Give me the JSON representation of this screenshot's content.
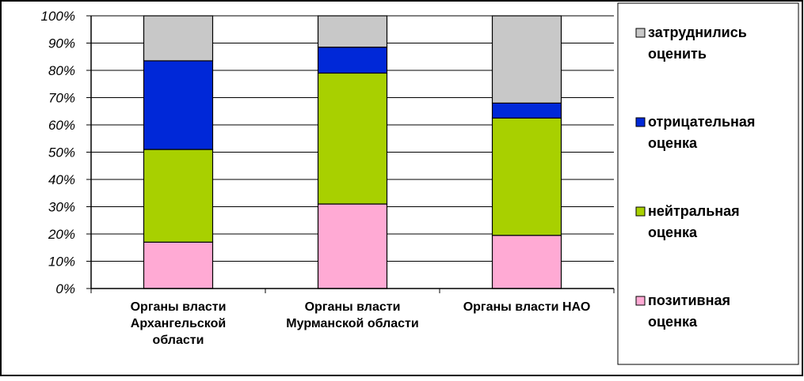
{
  "chart_data": {
    "type": "bar",
    "stacked": true,
    "normalized_percent": true,
    "categories": [
      [
        "Органы власти",
        "Архангельской",
        "области"
      ],
      [
        "Органы власти",
        "Мурманской области"
      ],
      [
        "Органы власти НАО"
      ]
    ],
    "series": [
      {
        "name_lines": [
          "позитивная",
          "оценка"
        ],
        "color": "#ffaad4",
        "values": [
          17,
          31,
          19.5
        ]
      },
      {
        "name_lines": [
          "нейтральная",
          "оценка"
        ],
        "color": "#a8d000",
        "values": [
          34,
          48,
          43
        ]
      },
      {
        "name_lines": [
          "отрицательная",
          "оценка"
        ],
        "color": "#0028d8",
        "values": [
          32.5,
          9.5,
          5.5
        ]
      },
      {
        "name_lines": [
          "затруднились",
          "оценить"
        ],
        "color": "#c8c8c8",
        "values": [
          16.5,
          11.5,
          32
        ]
      }
    ],
    "y_ticks": [
      "0%",
      "10%",
      "20%",
      "30%",
      "40%",
      "50%",
      "60%",
      "70%",
      "80%",
      "90%",
      "100%"
    ],
    "ylim": [
      0,
      100
    ],
    "grid": true,
    "legend_position": "right",
    "legend_order": [
      3,
      2,
      1,
      0
    ]
  }
}
